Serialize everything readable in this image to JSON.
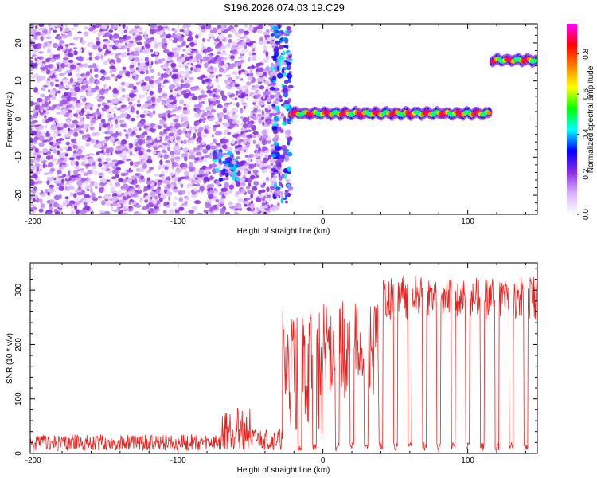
{
  "title": "S196.2026.074.03.19.C29",
  "chart_data": [
    {
      "type": "heatmap",
      "xlabel": "Height of straight line (km)",
      "ylabel": "Frequency (Hz)",
      "xlim": [
        -202,
        148
      ],
      "ylim": [
        -25,
        25
      ],
      "xticks": [
        -200,
        -100,
        0,
        100
      ],
      "yticks": [
        -20,
        -10,
        0,
        10,
        20
      ],
      "colorbar": {
        "label": "Normalized spectral amplitude",
        "range": [
          0,
          0.95
        ],
        "ticks": [
          "0.0",
          "0.2",
          "0.4",
          "0.6",
          "0.8"
        ],
        "tick_values": [
          0,
          0.2,
          0.4,
          0.6,
          0.8
        ],
        "colors": [
          "#ffffff",
          "#d9b3ff",
          "#8a2be2",
          "#0000ff",
          "#00ffff",
          "#00ff00",
          "#ffff00",
          "#ff8000",
          "#ff0000",
          "#ff00ff"
        ]
      },
      "features": [
        {
          "name": "noise cloud",
          "x_range": [
            -202,
            -30
          ],
          "y_range": [
            -25,
            25
          ],
          "amplitude": 0.15
        },
        {
          "name": "noise cluster",
          "x_range": [
            -75,
            -58
          ],
          "y_range": [
            -16,
            -8
          ],
          "amplitude": 0.3
        },
        {
          "name": "dispersed onset",
          "x_range": [
            -35,
            -22
          ],
          "y_range": [
            -22,
            25
          ],
          "amplitude": 0.3
        },
        {
          "name": "carrier trace",
          "x_range": [
            -22,
            115
          ],
          "frequency": 1.5,
          "amplitude": 0.9
        },
        {
          "name": "carrier trace shifted",
          "x_range": [
            117,
            148
          ],
          "frequency": 15.5,
          "amplitude": 0.9
        }
      ]
    },
    {
      "type": "line",
      "xlabel": "Height of straight line (km)",
      "ylabel": "SNR (10 * v/v)",
      "xlim": [
        -202,
        148
      ],
      "ylim": [
        0,
        350
      ],
      "xticks": [
        -200,
        -100,
        0,
        100
      ],
      "yticks": [
        0,
        100,
        200,
        300
      ],
      "series": [
        {
          "name": "SNR",
          "color": "#e8231f",
          "segments": [
            {
              "x_range": [
                -202,
                -70
              ],
              "level": 20,
              "spread": 15
            },
            {
              "x_range": [
                -70,
                -50
              ],
              "level": 45,
              "spread": 40
            },
            {
              "x_range": [
                -50,
                -28
              ],
              "level": 25,
              "spread": 20
            },
            {
              "x_range": [
                -28,
                0
              ],
              "level": 150,
              "spread": 120
            },
            {
              "x_range": [
                0,
                40
              ],
              "level": 190,
              "spread": 90
            },
            {
              "x_range": [
                40,
                148
              ],
              "level": 285,
              "spread": 40
            }
          ],
          "dropouts_x": [
            -16,
            -6,
            10,
            20,
            30,
            40,
            50,
            60,
            70,
            80,
            90,
            100,
            110,
            120,
            130,
            140
          ]
        }
      ]
    }
  ]
}
